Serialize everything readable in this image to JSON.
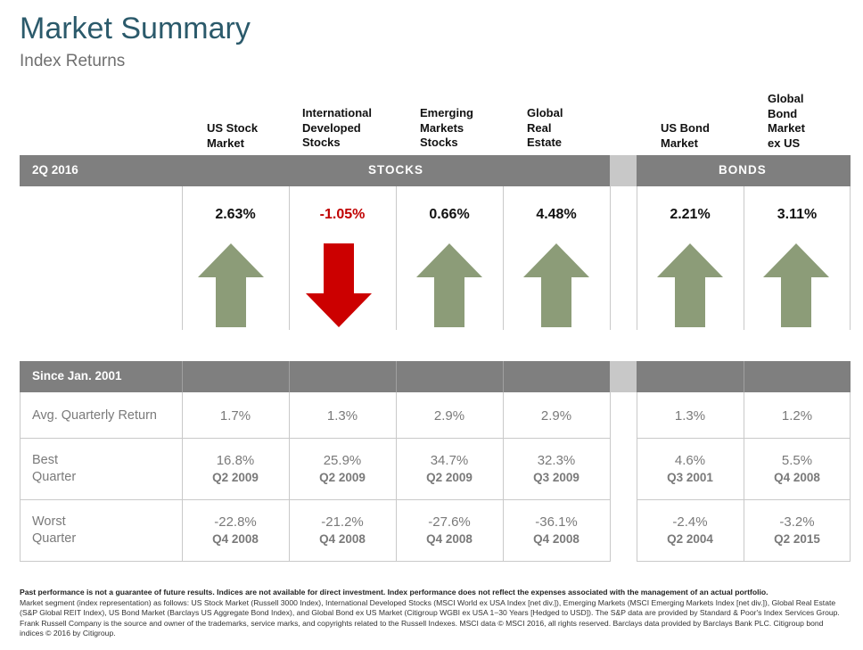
{
  "header": {
    "title": "Market Summary",
    "subtitle": "Index Returns"
  },
  "columns": [
    {
      "label": "US Stock\nMarket"
    },
    {
      "label": "International\nDeveloped\nStocks"
    },
    {
      "label": "Emerging\nMarkets\nStocks"
    },
    {
      "label": "Global\nReal\nEstate"
    },
    {
      "label": "US Bond\nMarket"
    },
    {
      "label": "Global\nBond\nMarket\nex US"
    }
  ],
  "quarter_bar": {
    "period": "2Q 2016",
    "stocks": "STOCKS",
    "bonds": "BONDS"
  },
  "returns": [
    {
      "value": "2.63%",
      "direction": "up"
    },
    {
      "value": "-1.05%",
      "direction": "down"
    },
    {
      "value": "0.66%",
      "direction": "up"
    },
    {
      "value": "4.48%",
      "direction": "up"
    },
    {
      "value": "2.21%",
      "direction": "up"
    },
    {
      "value": "3.11%",
      "direction": "up"
    }
  ],
  "colors": {
    "up_arrow": "#8c9c78",
    "down_arrow": "#cc0000",
    "bar": "#7f7f7f",
    "title": "#2b5a6b"
  },
  "since_bar": {
    "label": "Since Jan. 2001"
  },
  "stats": {
    "avg_label": "Avg. Quarterly Return",
    "avg": [
      "1.7%",
      "1.3%",
      "2.9%",
      "2.9%",
      "1.3%",
      "1.2%"
    ],
    "best_label": "Best\nQuarter",
    "best": [
      {
        "value": "16.8%",
        "quarter": "Q2 2009"
      },
      {
        "value": "25.9%",
        "quarter": "Q2 2009"
      },
      {
        "value": "34.7%",
        "quarter": "Q2 2009"
      },
      {
        "value": "32.3%",
        "quarter": "Q3 2009"
      },
      {
        "value": "4.6%",
        "quarter": "Q3 2001"
      },
      {
        "value": "5.5%",
        "quarter": "Q4 2008"
      }
    ],
    "worst_label": "Worst\nQuarter",
    "worst": [
      {
        "value": "-22.8%",
        "quarter": "Q4 2008"
      },
      {
        "value": "-21.2%",
        "quarter": "Q4 2008"
      },
      {
        "value": "-27.6%",
        "quarter": "Q4 2008"
      },
      {
        "value": "-36.1%",
        "quarter": "Q4 2008"
      },
      {
        "value": "-2.4%",
        "quarter": "Q2 2004"
      },
      {
        "value": "-3.2%",
        "quarter": "Q2 2015"
      }
    ]
  },
  "footnote": {
    "bold": "Past performance is not a guarantee of future results. Indices are not available for direct investment. Index performance does not reflect the expenses associated with the management of an actual portfolio.",
    "text": "Market segment (index representation) as follows: US Stock Market (Russell 3000 Index), International Developed Stocks (MSCI World ex USA Index [net div.]), Emerging Markets (MSCI Emerging Markets Index [net div.]), Global Real Estate (S&P Global REIT Index), US Bond Market (Barclays US Aggregate Bond Index), and Global Bond ex US Market (Citigroup WGBI ex USA 1−30 Years [Hedged to USD]). The S&P data are provided by Standard & Poor's Index Services Group. Frank Russell Company is the source and owner of the trademarks, service marks, and copyrights related to the Russell Indexes. MSCI data © MSCI 2016, all rights reserved. Barclays data provided by Barclays Bank PLC. Citigroup bond indices © 2016 by Citigroup."
  }
}
